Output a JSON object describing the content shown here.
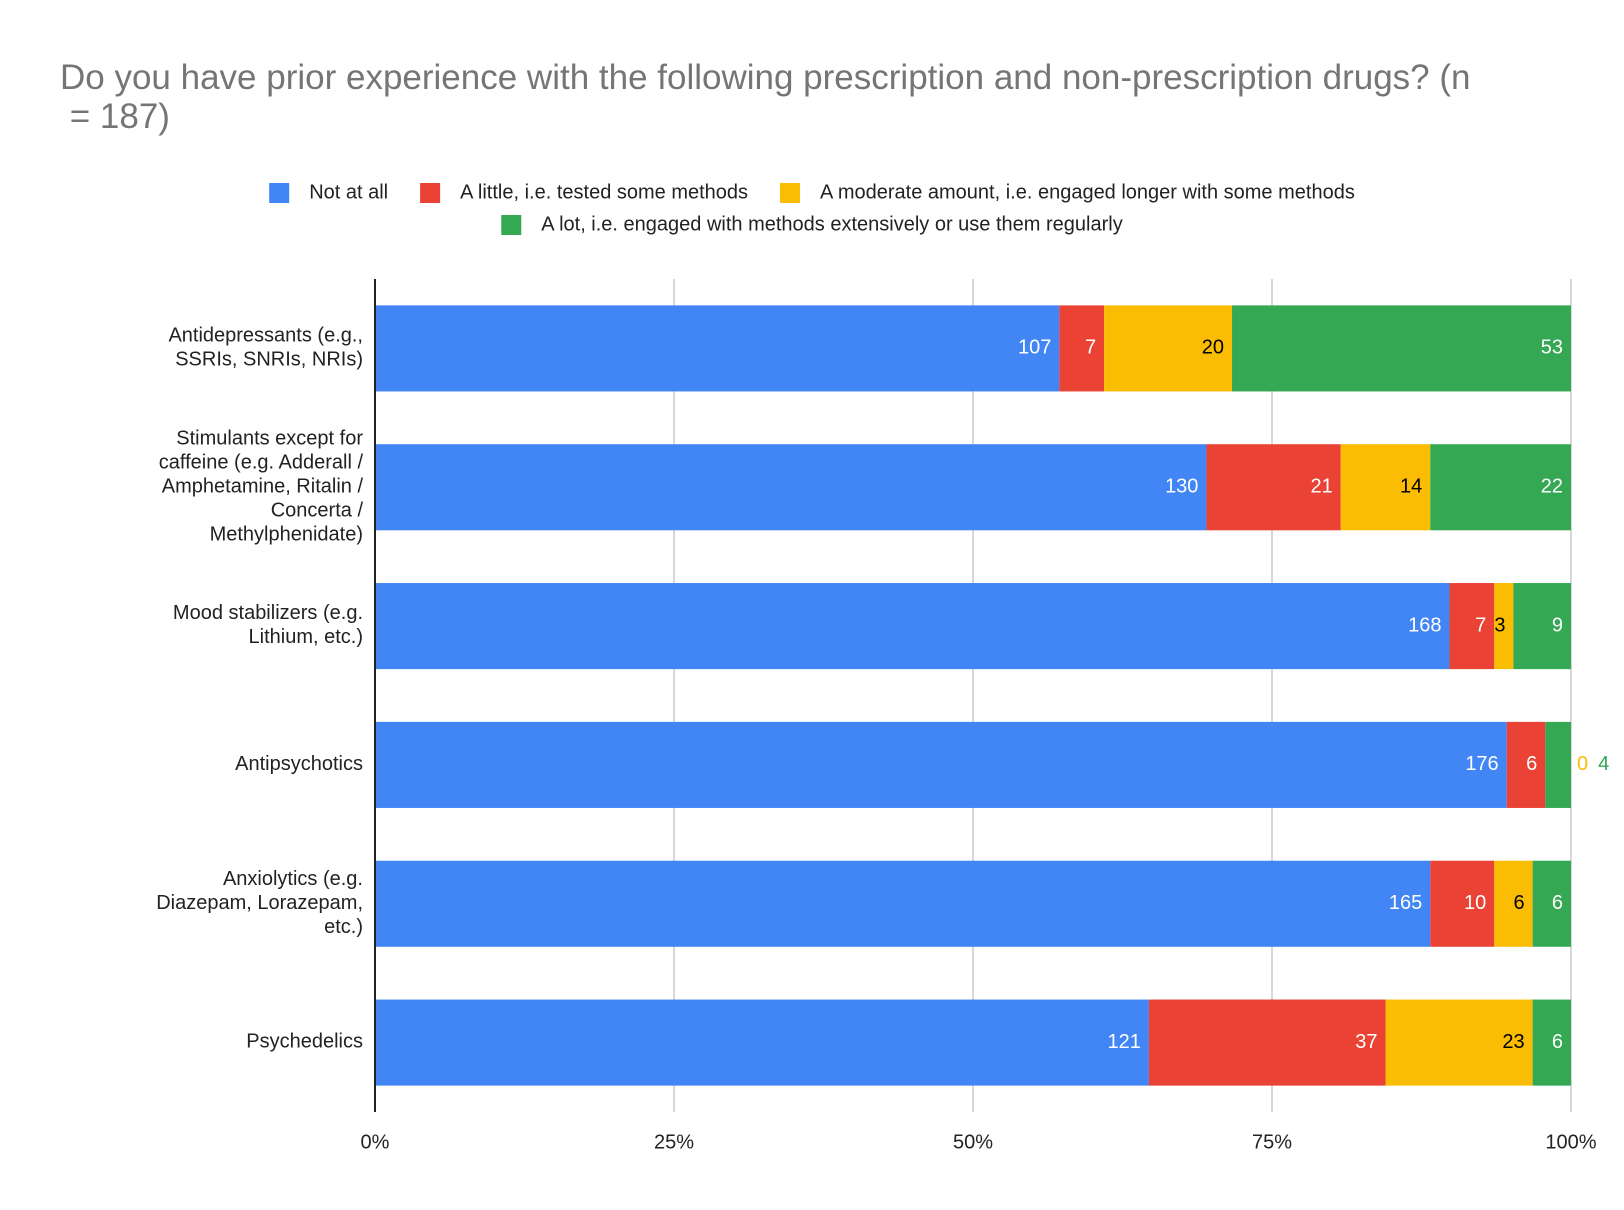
{
  "chart_data": {
    "type": "bar",
    "orientation": "horizontal",
    "stacked": "percent",
    "title": "Do you have prior experience with the following prescription and non-prescription drugs? (n = 187)",
    "categories": [
      "Antidepressants (e.g., SSRIs, SNRIs, NRIs)",
      "Stimulants except for caffeine (e.g. Adderall / Amphetamine, Ritalin / Concerta / Methylphenidate)",
      "Mood stabilizers  (e.g. Lithium, etc.)",
      "Antipsychotics",
      "Anxiolytics (e.g. Diazepam, Lorazepam, etc.)",
      "Psychedelics"
    ],
    "series": [
      {
        "name": "Not at all",
        "color": "#4285f4",
        "label_color": "#ffffff",
        "values": [
          107,
          130,
          168,
          176,
          165,
          121
        ]
      },
      {
        "name": "A little, i.e. tested some methods",
        "color": "#ea4335",
        "label_color": "#ffffff",
        "values": [
          7,
          21,
          7,
          6,
          10,
          37
        ]
      },
      {
        "name": "A moderate amount, i.e. engaged longer with some methods",
        "color": "#fbbc04",
        "label_color": "#000000",
        "values": [
          20,
          14,
          3,
          0,
          6,
          23
        ]
      },
      {
        "name": "A lot, i.e. engaged with methods extensively or use them regularly",
        "color": "#34a853",
        "label_color": "#ffffff",
        "values": [
          53,
          22,
          9,
          4,
          6,
          6
        ]
      }
    ],
    "xlim": [
      0,
      100
    ],
    "xticks": [
      {
        "value": 0,
        "label": "0%"
      },
      {
        "value": 25,
        "label": "25%"
      },
      {
        "value": 50,
        "label": "50%"
      },
      {
        "value": 75,
        "label": "75%"
      },
      {
        "value": 100,
        "label": "100%"
      }
    ],
    "grid": true,
    "legend": "top"
  }
}
